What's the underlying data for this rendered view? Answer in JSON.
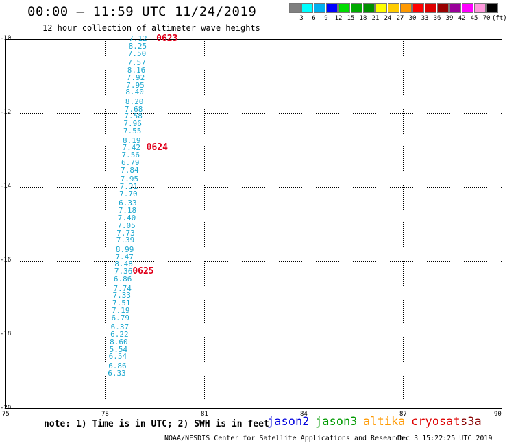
{
  "header": {
    "title": "00:00 – 11:59 UTC 11/24/2019",
    "subtitle": "12 hour collection of altimeter wave heights"
  },
  "color_scale": {
    "colors": [
      "#808080",
      "#00ffff",
      "#00b0f0",
      "#0000ff",
      "#00dd00",
      "#00aa00",
      "#009000",
      "#ffff00",
      "#ffcc00",
      "#ff9900",
      "#ff0000",
      "#dd0000",
      "#990000",
      "#990099",
      "#ff00ff",
      "#ff99dd",
      "#000000"
    ],
    "labels": [
      "3",
      "6",
      "9",
      "12",
      "15",
      "18",
      "21",
      "24",
      "27",
      "30",
      "33",
      "36",
      "39",
      "42",
      "45",
      "70",
      "(ft)"
    ]
  },
  "axes": {
    "lat_ticks": [
      "-10",
      "-12",
      "-14",
      "-16",
      "-18",
      "-20"
    ],
    "lon_ticks": [
      "75",
      "78",
      "81",
      "84",
      "87",
      "90"
    ]
  },
  "track": {
    "color": "#1aa7cf",
    "observations": [
      {
        "lat": -10.0,
        "lon": 79.1,
        "swh": "7.12"
      },
      {
        "lat": -10.2,
        "lon": 79.09,
        "swh": "8.25"
      },
      {
        "lat": -10.4,
        "lon": 79.07,
        "swh": "7.50"
      },
      {
        "lat": -10.65,
        "lon": 79.06,
        "swh": "7.57"
      },
      {
        "lat": -10.85,
        "lon": 79.05,
        "swh": "8.16"
      },
      {
        "lat": -11.05,
        "lon": 79.03,
        "swh": "7.92"
      },
      {
        "lat": -11.25,
        "lon": 79.02,
        "swh": "7.95"
      },
      {
        "lat": -11.45,
        "lon": 79.0,
        "swh": "8.40"
      },
      {
        "lat": -11.7,
        "lon": 78.99,
        "swh": "8.20"
      },
      {
        "lat": -11.9,
        "lon": 78.97,
        "swh": "7.68"
      },
      {
        "lat": -12.1,
        "lon": 78.96,
        "swh": "7.58"
      },
      {
        "lat": -12.3,
        "lon": 78.94,
        "swh": "7.96"
      },
      {
        "lat": -12.5,
        "lon": 78.93,
        "swh": "7.55"
      },
      {
        "lat": -12.75,
        "lon": 78.91,
        "swh": "8.19"
      },
      {
        "lat": -12.95,
        "lon": 78.9,
        "swh": "7.42"
      },
      {
        "lat": -13.15,
        "lon": 78.88,
        "swh": "7.56"
      },
      {
        "lat": -13.35,
        "lon": 78.87,
        "swh": "6.79"
      },
      {
        "lat": -13.55,
        "lon": 78.85,
        "swh": "7.84"
      },
      {
        "lat": -13.8,
        "lon": 78.84,
        "swh": "7.95"
      },
      {
        "lat": -14.0,
        "lon": 78.82,
        "swh": "7.31"
      },
      {
        "lat": -14.2,
        "lon": 78.81,
        "swh": "7.70"
      },
      {
        "lat": -14.45,
        "lon": 78.79,
        "swh": "6.33"
      },
      {
        "lat": -14.65,
        "lon": 78.78,
        "swh": "7.18"
      },
      {
        "lat": -14.85,
        "lon": 78.76,
        "swh": "7.40"
      },
      {
        "lat": -15.05,
        "lon": 78.75,
        "swh": "7.05"
      },
      {
        "lat": -15.25,
        "lon": 78.73,
        "swh": "7.73"
      },
      {
        "lat": -15.45,
        "lon": 78.72,
        "swh": "7.39"
      },
      {
        "lat": -15.7,
        "lon": 78.7,
        "swh": "8.99"
      },
      {
        "lat": -15.9,
        "lon": 78.69,
        "swh": "7.47"
      },
      {
        "lat": -16.1,
        "lon": 78.67,
        "swh": "8.48"
      },
      {
        "lat": -16.3,
        "lon": 78.66,
        "swh": "7.36"
      },
      {
        "lat": -16.5,
        "lon": 78.64,
        "swh": "6.86"
      },
      {
        "lat": -16.75,
        "lon": 78.63,
        "swh": "7.74"
      },
      {
        "lat": -16.95,
        "lon": 78.61,
        "swh": "7.33"
      },
      {
        "lat": -17.15,
        "lon": 78.6,
        "swh": "7.51"
      },
      {
        "lat": -17.35,
        "lon": 78.58,
        "swh": "7.19"
      },
      {
        "lat": -17.55,
        "lon": 78.57,
        "swh": "6.79"
      },
      {
        "lat": -17.8,
        "lon": 78.55,
        "swh": "6.37"
      },
      {
        "lat": -18.0,
        "lon": 78.54,
        "swh": "6.22"
      },
      {
        "lat": -18.2,
        "lon": 78.52,
        "swh": "8.60"
      },
      {
        "lat": -18.4,
        "lon": 78.51,
        "swh": "5.54"
      },
      {
        "lat": -18.6,
        "lon": 78.49,
        "swh": "6.54"
      },
      {
        "lat": -18.85,
        "lon": 78.48,
        "swh": "6.86"
      },
      {
        "lat": -19.05,
        "lon": 78.46,
        "swh": "6.33"
      }
    ],
    "time_labels": [
      {
        "lat": -10.0,
        "lon": 79.72,
        "text": "0623"
      },
      {
        "lat": -12.95,
        "lon": 79.42,
        "text": "0624"
      },
      {
        "lat": -16.3,
        "lon": 79.0,
        "text": "0625"
      }
    ]
  },
  "footer": {
    "note": "note:  1) Time is in UTC;  2) SWH is in feet",
    "credit": "NOAA/NESDIS Center for Satellite Applications and Research",
    "date": "Dec  3 15:22:25 UTC 2019"
  },
  "legend": [
    {
      "name": "jason2",
      "color": "#0000dd"
    },
    {
      "name": "jason3",
      "color": "#009900"
    },
    {
      "name": "altika",
      "color": "#ff9900"
    },
    {
      "name": "cryosat",
      "color": "#dd0000"
    },
    {
      "name": "s3a",
      "color": "#880000"
    }
  ]
}
